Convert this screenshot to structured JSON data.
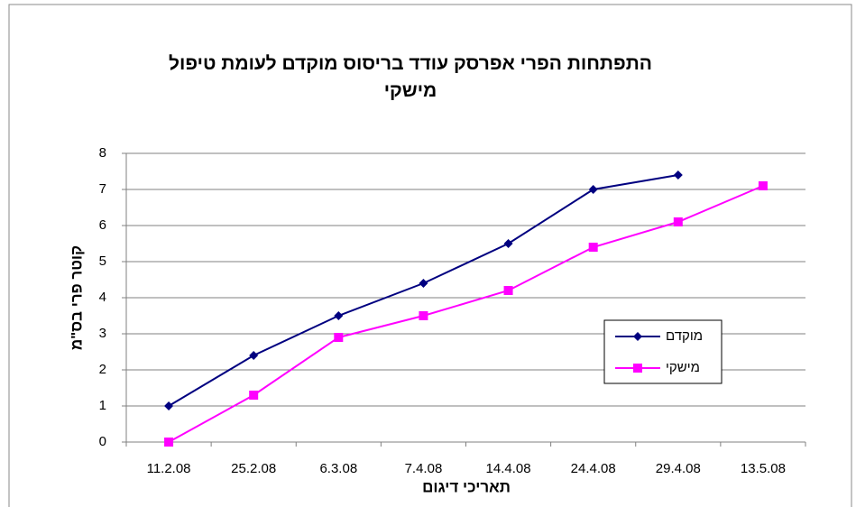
{
  "chart_data": {
    "type": "line",
    "title": "התפתחות הפרי אפרסק עודד בריסוס מוקדם לעומת טיפול מישקי",
    "xlabel": "תאריכי דיגום",
    "ylabel": "קוטר פרי בס\"מ",
    "categories": [
      "11.2.08",
      "25.2.08",
      "6.3.08",
      "7.4.08",
      "14.4.08",
      "24.4.08",
      "29.4.08",
      "13.5.08"
    ],
    "series": [
      {
        "name": "מוקדם",
        "color": "#000080",
        "marker": "diamond",
        "values": [
          1,
          2.4,
          3.5,
          4.4,
          5.5,
          7.0,
          7.4,
          null
        ]
      },
      {
        "name": "מישקי",
        "color": "#ff00ff",
        "marker": "square",
        "values": [
          0,
          1.3,
          2.9,
          3.5,
          4.2,
          5.4,
          6.1,
          7.1
        ]
      }
    ],
    "ylim": [
      0,
      8
    ],
    "yticks": [
      0,
      1,
      2,
      3,
      4,
      5,
      6,
      7,
      8
    ],
    "grid": true
  }
}
